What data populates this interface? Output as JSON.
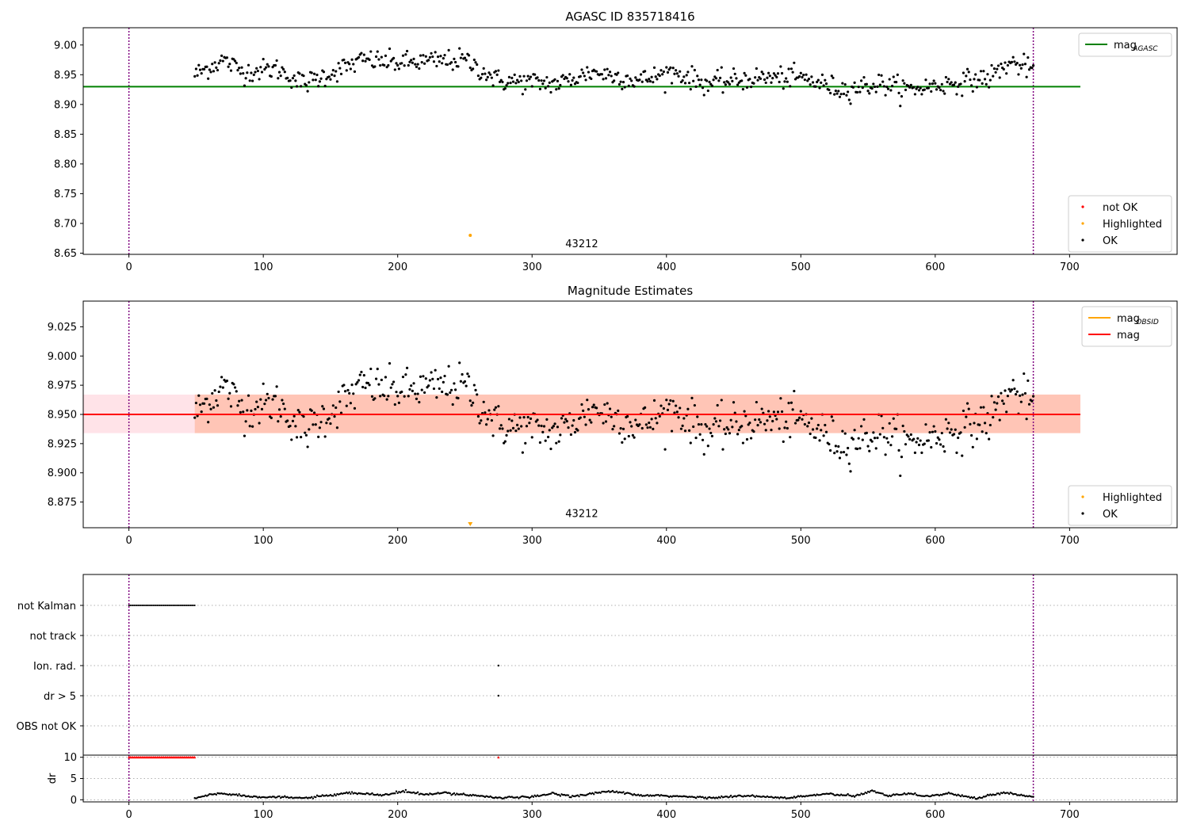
{
  "chart_data": [
    {
      "id": "agasc",
      "type": "scatter",
      "title": "AGASC ID 835718416",
      "xlim": [
        -34,
        780
      ],
      "ylim": [
        8.648,
        9.029
      ],
      "xticks": [
        0,
        100,
        200,
        300,
        400,
        500,
        600,
        700
      ],
      "yticks": [
        8.65,
        8.7,
        8.75,
        8.8,
        8.85,
        8.9,
        8.95,
        9.0
      ],
      "ytick_labels": [
        "8.65",
        "8.70",
        "8.75",
        "8.80",
        "8.85",
        "8.90",
        "8.95",
        "9.00"
      ],
      "lines": [
        {
          "name": "mag_AGASC",
          "y": 8.93,
          "x_range": [
            -34,
            708
          ],
          "color": "#008000"
        }
      ],
      "vlines": [
        0,
        673
      ],
      "series_ok_x_range": [
        49,
        673
      ],
      "series_ok_mean_profile": [
        [
          49,
          8.95
        ],
        [
          70,
          8.975
        ],
        [
          85,
          8.955
        ],
        [
          110,
          8.96
        ],
        [
          130,
          8.935
        ],
        [
          175,
          8.975
        ],
        [
          200,
          8.97
        ],
        [
          250,
          8.975
        ],
        [
          275,
          8.94
        ],
        [
          320,
          8.935
        ],
        [
          345,
          8.955
        ],
        [
          380,
          8.94
        ],
        [
          405,
          8.955
        ],
        [
          430,
          8.935
        ],
        [
          470,
          8.945
        ],
        [
          500,
          8.945
        ],
        [
          530,
          8.925
        ],
        [
          560,
          8.935
        ],
        [
          580,
          8.925
        ],
        [
          610,
          8.935
        ],
        [
          640,
          8.945
        ],
        [
          655,
          8.97
        ],
        [
          673,
          8.96
        ]
      ],
      "series_ok_scatter": 0.012,
      "highlighted": [
        {
          "x": 254,
          "y": 8.68
        }
      ],
      "annotation": {
        "text": "43212",
        "x": 337,
        "y": 8.66
      },
      "legend_top": {
        "position": "top-right",
        "entries": [
          {
            "label": "mag",
            "subscript": "AGASC",
            "color": "#008000"
          }
        ]
      },
      "legend_bottom": {
        "position": "bottom-right",
        "entries": [
          {
            "label": "not OK",
            "color": "#ff0000"
          },
          {
            "label": "Highlighted",
            "color": "#ffa500"
          },
          {
            "label": "OK",
            "color": "#000000"
          }
        ]
      }
    },
    {
      "id": "estimates",
      "type": "scatter",
      "title": "Magnitude Estimates",
      "xlim": [
        -34,
        780
      ],
      "ylim": [
        8.853,
        9.047
      ],
      "xticks": [
        0,
        100,
        200,
        300,
        400,
        500,
        600,
        700
      ],
      "yticks": [
        8.875,
        8.9,
        8.925,
        8.95,
        8.975,
        9.0,
        9.025
      ],
      "ytick_labels": [
        "8.875",
        "8.900",
        "8.925",
        "8.950",
        "8.975",
        "9.000",
        "9.025"
      ],
      "lines": [
        {
          "name": "mag",
          "y": 8.95,
          "x_range": [
            -34,
            708
          ],
          "color": "#ff0000"
        }
      ],
      "bands": [
        {
          "y0": 8.934,
          "y1": 8.967,
          "x_range": [
            -34,
            708
          ],
          "color": "#ffc0cb",
          "opacity": 0.45
        },
        {
          "y0": 8.934,
          "y1": 8.967,
          "x_range": [
            49,
            708
          ],
          "color": "#ffa07a",
          "opacity": 0.45
        }
      ],
      "vlines": [
        0,
        673
      ],
      "highlighted": [
        {
          "x": 254,
          "y": 8.855
        }
      ],
      "annotation": {
        "text": "43212",
        "x": 337,
        "y": 8.862
      },
      "legend_top": {
        "position": "top-right",
        "entries": [
          {
            "label": "mag",
            "subscript": "OBSID",
            "color": "#ffa500"
          },
          {
            "label": "mag",
            "subscript": "",
            "color": "#ff0000"
          }
        ]
      },
      "legend_bottom": {
        "position": "bottom-right",
        "entries": [
          {
            "label": "Highlighted",
            "color": "#ffa500"
          },
          {
            "label": "OK",
            "color": "#000000"
          }
        ]
      }
    },
    {
      "id": "flags",
      "type": "scatter",
      "xlim": [
        -34,
        780
      ],
      "categories": [
        "not Kalman",
        "not track",
        "Ion. rad.",
        "dr > 5",
        "OBS not OK"
      ],
      "flag_events": [
        {
          "category": "not Kalman",
          "x_range": [
            0,
            49
          ]
        },
        {
          "category": "Ion. rad.",
          "x": 275
        },
        {
          "category": "dr > 5",
          "x": 275
        }
      ],
      "vlines": [
        0,
        673
      ]
    },
    {
      "id": "dr",
      "type": "scatter",
      "xlim": [
        -34,
        780
      ],
      "ylim": [
        -0.5,
        10.5
      ],
      "ylabel": "dr",
      "xticks": [
        0,
        100,
        200,
        300,
        400,
        500,
        600,
        700
      ],
      "yticks": [
        0,
        5,
        10
      ],
      "ytick_labels": [
        "0",
        "5",
        "10"
      ],
      "red_marks": {
        "y": 10,
        "x_range": [
          0,
          49
        ],
        "extra_x": [
          275
        ]
      },
      "dr_profile": [
        [
          49,
          0.3
        ],
        [
          60,
          1.2
        ],
        [
          70,
          1.5
        ],
        [
          90,
          0.8
        ],
        [
          110,
          0.6
        ],
        [
          130,
          0.4
        ],
        [
          150,
          1.0
        ],
        [
          165,
          1.6
        ],
        [
          190,
          1.1
        ],
        [
          205,
          2.0
        ],
        [
          220,
          1.2
        ],
        [
          235,
          1.6
        ],
        [
          255,
          1.1
        ],
        [
          275,
          0.5
        ],
        [
          300,
          0.6
        ],
        [
          315,
          1.5
        ],
        [
          330,
          0.8
        ],
        [
          345,
          1.5
        ],
        [
          360,
          2.0
        ],
        [
          380,
          1.0
        ],
        [
          400,
          0.9
        ],
        [
          430,
          0.5
        ],
        [
          460,
          0.9
        ],
        [
          490,
          0.4
        ],
        [
          520,
          1.4
        ],
        [
          540,
          0.8
        ],
        [
          553,
          2.1
        ],
        [
          565,
          1.0
        ],
        [
          580,
          1.5
        ],
        [
          595,
          0.8
        ],
        [
          610,
          1.5
        ],
        [
          630,
          0.3
        ],
        [
          650,
          1.7
        ],
        [
          673,
          0.7
        ]
      ],
      "vlines": [
        0,
        673
      ]
    }
  ]
}
